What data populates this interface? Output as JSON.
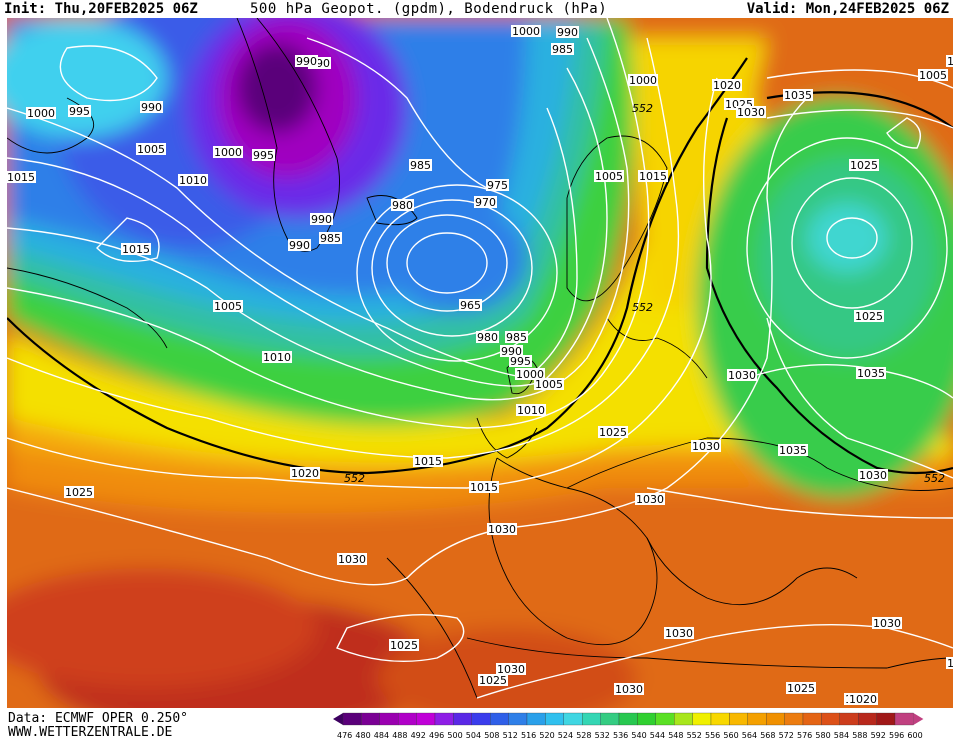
{
  "header": {
    "init": "Init: Thu,20FEB2025 06Z",
    "title": "500 hPa Geopot. (gpdm), Bodendruck (hPa)",
    "valid": "Valid: Mon,24FEB2025 06Z"
  },
  "footer": {
    "data_source": "Data: ECMWF OPER 0.250°",
    "website": "WWW.WETTERZENTRALE.DE"
  },
  "colorbar": {
    "values": [
      "476",
      "480",
      "484",
      "488",
      "492",
      "496",
      "500",
      "504",
      "508",
      "512",
      "516",
      "520",
      "524",
      "528",
      "532",
      "536",
      "540",
      "544",
      "548",
      "552",
      "556",
      "560",
      "564",
      "568",
      "572",
      "576",
      "580",
      "584",
      "588",
      "592",
      "596",
      "600"
    ],
    "colors": [
      "#3d0060",
      "#5a007a",
      "#7a0094",
      "#9a00b0",
      "#b000c8",
      "#c000d8",
      "#8e1ee6",
      "#5a28e6",
      "#3a3cec",
      "#2f5fe8",
      "#2f7fe8",
      "#2aa0ea",
      "#30c0ee",
      "#40d6e2",
      "#34d6b4",
      "#34cc82",
      "#28c850",
      "#30d030",
      "#5ae024",
      "#a8e61c",
      "#f0f000",
      "#f8d800",
      "#f8b800",
      "#f4a000",
      "#f09000",
      "#ec7c10",
      "#e46414",
      "#dc5018",
      "#cc3c1c",
      "#b8281c",
      "#a01818",
      "#c04080"
    ]
  },
  "isobar_labels": [
    "990",
    "985",
    "1000",
    "990",
    "990",
    "1000",
    "995",
    "990",
    "1005",
    "1000",
    "995",
    "1015",
    "1010",
    "985",
    "1000",
    "1020",
    "1025",
    "1030",
    "552",
    "1035",
    "1020",
    "975",
    "970",
    "1005",
    "1015",
    "980",
    "990",
    "985",
    "990",
    "1015",
    "965",
    "1005",
    "1025",
    "1005",
    "552",
    "980",
    "985",
    "990",
    "995",
    "1025",
    "1010",
    "1000",
    "1005",
    "1015",
    "1010",
    "1030",
    "1035",
    "1030",
    "1020",
    "1025",
    "1015",
    "552",
    "1030",
    "1025",
    "1030",
    "1035",
    "1030",
    "552",
    "1020",
    "1030",
    "1025",
    "1030",
    "1030",
    "1030",
    "1025",
    "1030",
    "1025",
    "1025",
    "1020",
    "1020"
  ]
}
